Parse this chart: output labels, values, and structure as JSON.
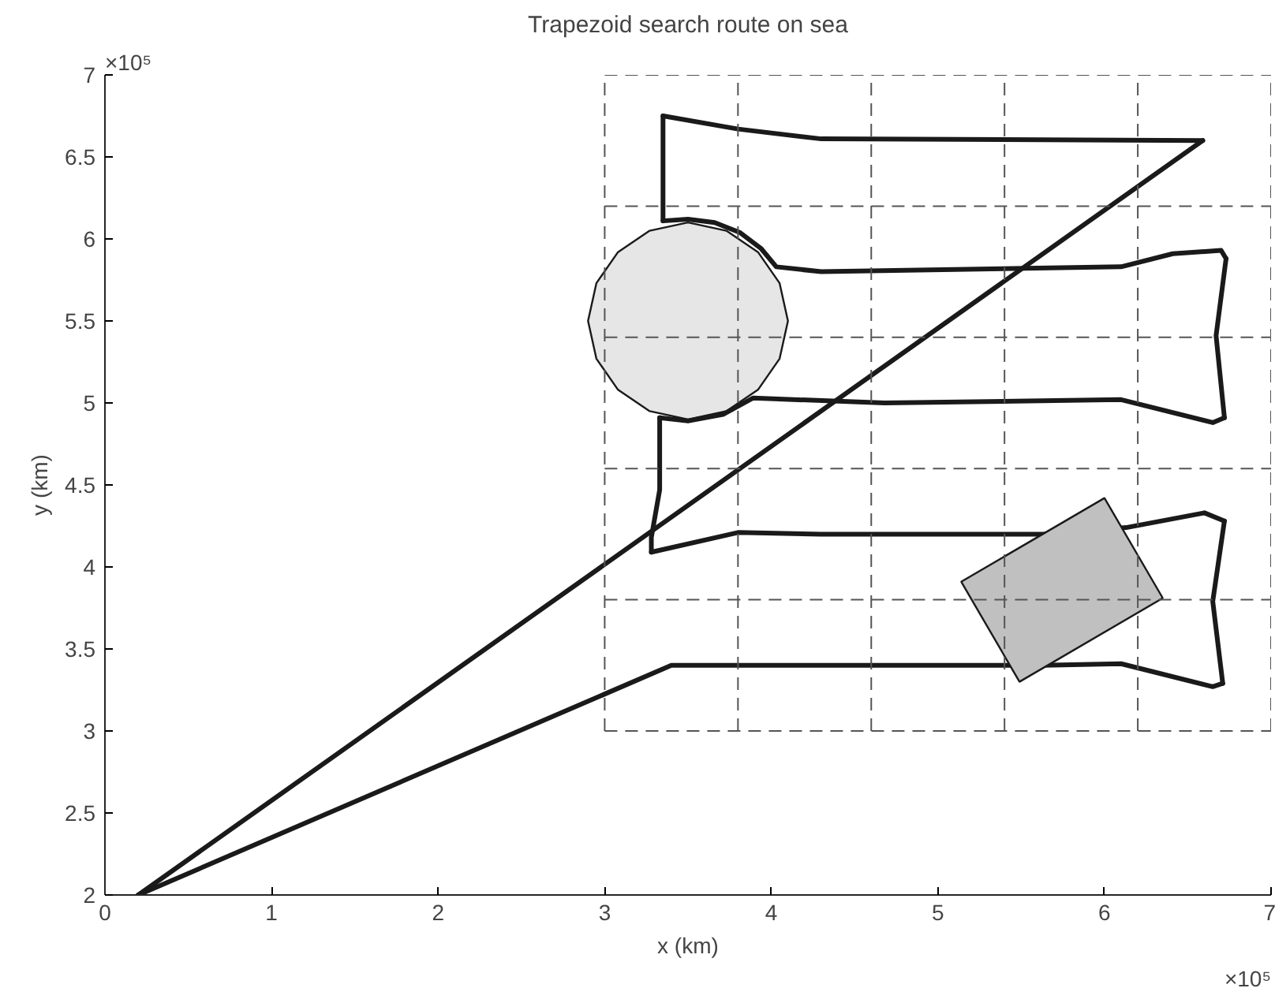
{
  "chart_data": {
    "type": "line",
    "title": "Trapezoid search route on sea",
    "xlabel": "x (km)",
    "ylabel": "y (km)",
    "annotations": [
      "×10⁵",
      "×10⁵"
    ],
    "xlim": [
      0,
      7
    ],
    "ylim": [
      2,
      7
    ],
    "xticks": [
      0,
      1,
      2,
      3,
      4,
      5,
      6,
      7
    ],
    "yticks": [
      2,
      2.5,
      3,
      3.5,
      4,
      4.5,
      5,
      5.5,
      6,
      6.5,
      7
    ],
    "series": [
      {
        "type": "area",
        "color": "#e6e6e6",
        "x": [
          4.1,
          4.05,
          3.92,
          3.73,
          3.5,
          3.27,
          3.08,
          2.95,
          2.9,
          2.95,
          3.08,
          3.27,
          3.5,
          3.73,
          3.92,
          4.05
        ],
        "values": [
          5.5,
          5.73,
          5.92,
          6.05,
          6.1,
          6.05,
          5.92,
          5.73,
          5.5,
          5.27,
          5.08,
          4.95,
          4.9,
          4.95,
          5.08,
          5.27
        ]
      },
      {
        "color": "#1a1a1a",
        "x": [
          0.2,
          6.59
        ],
        "values": [
          2.0,
          6.6
        ]
      },
      {
        "color": "#1a1a1a",
        "x": [
          6.59,
          4.3,
          3.8,
          3.35
        ],
        "values": [
          6.6,
          6.61,
          6.67,
          6.75
        ]
      },
      {
        "color": "#1a1a1a",
        "x": [
          3.35,
          3.35
        ],
        "values": [
          6.75,
          6.11
        ]
      },
      {
        "color": "#1a1a1a",
        "x": [
          3.35,
          3.5,
          3.66,
          3.81,
          3.94,
          4.03,
          4.3,
          6.1,
          6.41,
          6.7,
          6.73
        ],
        "values": [
          6.11,
          6.12,
          6.1,
          6.04,
          5.94,
          5.83,
          5.8,
          5.83,
          5.91,
          5.93,
          5.88
        ]
      },
      {
        "color": "#1a1a1a",
        "x": [
          6.73,
          6.67,
          6.72
        ],
        "values": [
          5.88,
          5.41,
          4.91
        ]
      },
      {
        "color": "#1a1a1a",
        "x": [
          6.72,
          6.65,
          6.1,
          4.68,
          3.89,
          3.71,
          3.5,
          3.33
        ],
        "values": [
          4.91,
          4.88,
          5.02,
          5.0,
          5.03,
          4.93,
          4.89,
          4.91
        ]
      },
      {
        "color": "#1a1a1a",
        "x": [
          3.33,
          3.33,
          3.28,
          3.28
        ],
        "values": [
          4.91,
          4.47,
          4.18,
          4.09
        ]
      },
      {
        "color": "#1a1a1a",
        "x": [
          3.28,
          3.8,
          4.3,
          5.63,
          6.13,
          6.6,
          6.72
        ],
        "values": [
          4.09,
          4.21,
          4.2,
          4.2,
          4.24,
          4.33,
          4.28
        ]
      },
      {
        "color": "#1a1a1a",
        "x": [
          6.72,
          6.65,
          6.71
        ],
        "values": [
          4.28,
          3.79,
          3.29
        ]
      },
      {
        "color": "#1a1a1a",
        "x": [
          6.71,
          6.65,
          6.1,
          5.63,
          5.41,
          3.4,
          0.2
        ],
        "values": [
          3.29,
          3.27,
          3.41,
          3.4,
          3.4,
          3.4,
          2.0
        ]
      },
      {
        "type": "area",
        "color": "#c0c0c0",
        "x": [
          5.14,
          6.0,
          6.35,
          5.49
        ],
        "values": [
          3.91,
          4.42,
          3.81,
          3.3
        ]
      },
      {
        "color": "#555555",
        "line_style": "dashed",
        "x": [
          3,
          3
        ],
        "values": [
          3,
          7
        ]
      },
      {
        "color": "#555555",
        "line_style": "dashed",
        "x": [
          3.8,
          3.8
        ],
        "values": [
          3,
          7
        ]
      },
      {
        "color": "#555555",
        "line_style": "dashed",
        "x": [
          4.6,
          4.6
        ],
        "values": [
          3,
          7
        ]
      },
      {
        "color": "#555555",
        "line_style": "dashed",
        "x": [
          5.4,
          5.4
        ],
        "values": [
          3,
          7
        ]
      },
      {
        "color": "#555555",
        "line_style": "dashed",
        "x": [
          6.2,
          6.2
        ],
        "values": [
          3,
          7
        ]
      },
      {
        "color": "#555555",
        "line_style": "dashed",
        "x": [
          7,
          7
        ],
        "values": [
          3,
          7
        ]
      },
      {
        "color": "#555555",
        "line_style": "dashed",
        "x": [
          3,
          7
        ],
        "values": [
          3,
          3
        ]
      },
      {
        "color": "#555555",
        "line_style": "dashed",
        "x": [
          3,
          7
        ],
        "values": [
          3.8,
          3.8
        ]
      },
      {
        "color": "#555555",
        "line_style": "dashed",
        "x": [
          3,
          7
        ],
        "values": [
          4.6,
          4.6
        ]
      },
      {
        "color": "#555555",
        "line_style": "dashed",
        "x": [
          3,
          7
        ],
        "values": [
          5.4,
          5.4
        ]
      },
      {
        "color": "#555555",
        "line_style": "dashed",
        "x": [
          3,
          7
        ],
        "values": [
          6.2,
          6.2
        ]
      },
      {
        "color": "#555555",
        "line_style": "dashed",
        "x": [
          3,
          7
        ],
        "values": [
          7,
          7
        ]
      }
    ]
  }
}
